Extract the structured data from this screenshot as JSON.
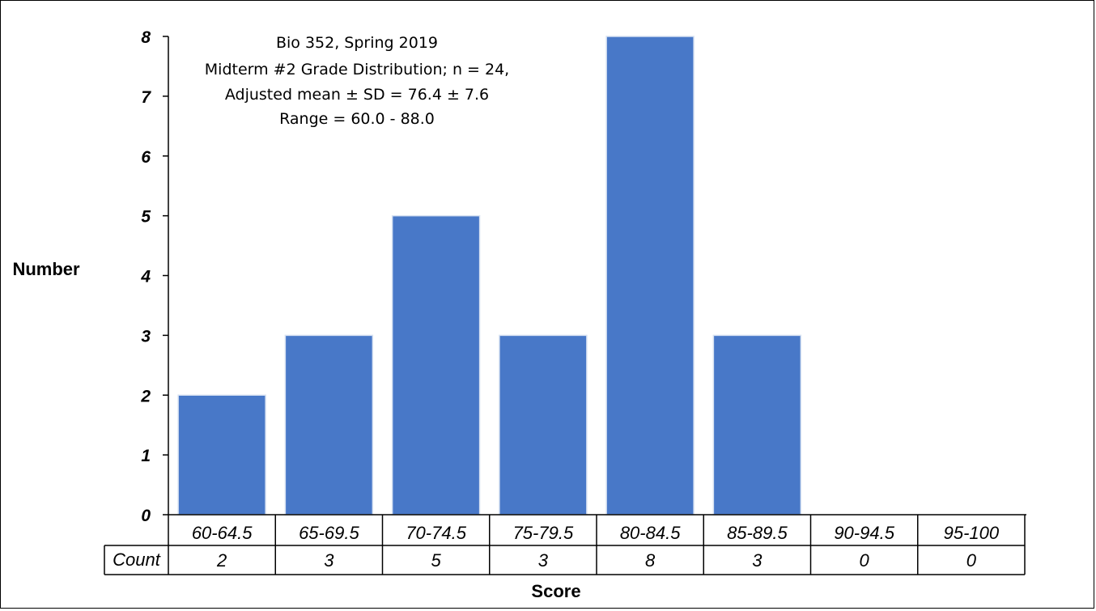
{
  "chart_data": {
    "type": "bar",
    "title_lines": [
      "Bio 352, Spring 2019",
      "Midterm #2 Grade Distribution;  n = 24,",
      "Adjusted mean ± SD = 76.4 ± 7.6",
      "Range = 60.0 - 88.0"
    ],
    "xlabel": "Score",
    "ylabel": "Number",
    "ylim": [
      0,
      8
    ],
    "yticks": [
      0,
      1,
      2,
      3,
      4,
      5,
      6,
      7,
      8
    ],
    "categories": [
      "60-64.5",
      "65-69.5",
      "70-74.5",
      "75-79.5",
      "80-84.5",
      "85-89.5",
      "90-94.5",
      "95-100"
    ],
    "values": [
      2,
      3,
      5,
      3,
      8,
      3,
      0,
      0
    ],
    "table_row_label": "Count",
    "bar_color": "#4878C8",
    "grid": false,
    "legend": "none"
  }
}
